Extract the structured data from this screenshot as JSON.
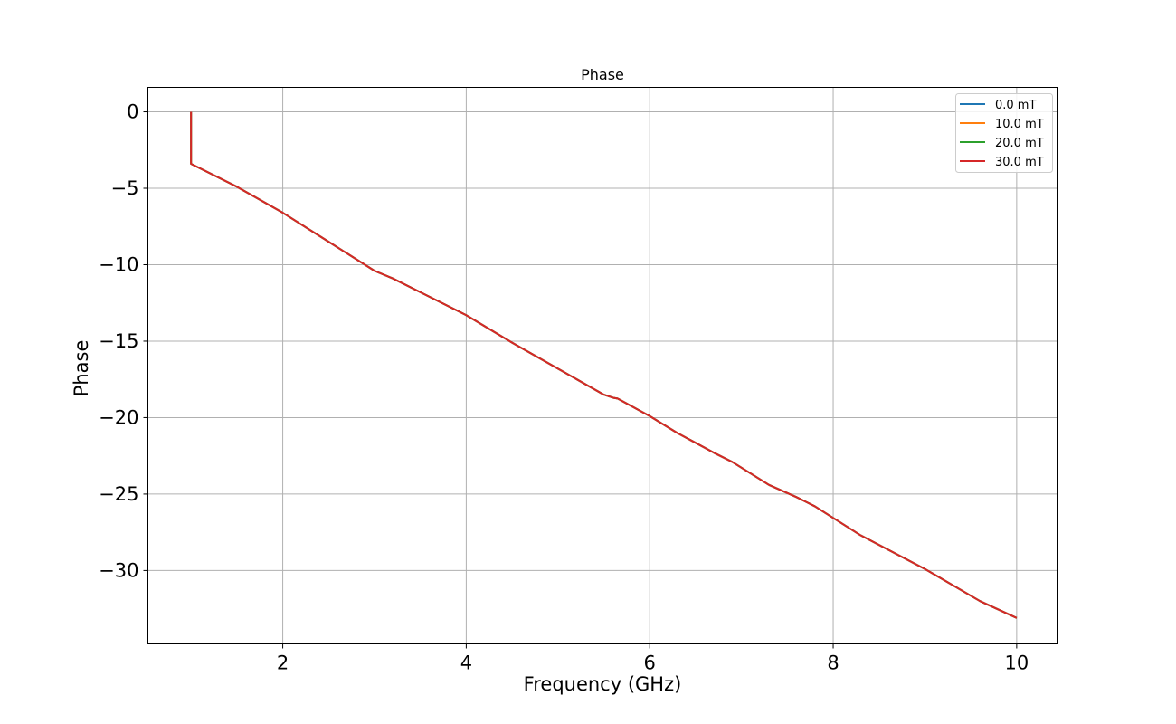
{
  "chart_data": {
    "type": "line",
    "title": "Phase",
    "xlabel": "Frequency (GHz)",
    "ylabel": "Phase",
    "xlim": [
      0.53,
      10.45
    ],
    "ylim": [
      -34.8,
      1.6
    ],
    "xticks": [
      2,
      4,
      6,
      8,
      10
    ],
    "xtick_labels": [
      "2",
      "4",
      "6",
      "8",
      "10"
    ],
    "yticks": [
      0,
      -5,
      -10,
      -15,
      -20,
      -25,
      -30
    ],
    "ytick_labels": [
      "0",
      "−5",
      "−10",
      "−15",
      "−20",
      "−25",
      "−30"
    ],
    "grid": true,
    "legend_position": "top-right",
    "series": [
      {
        "name": "0.0 mT",
        "color": "#1f77b4",
        "x": [
          1.0,
          1.0,
          1.0,
          1.5,
          2.0,
          2.5,
          3.0,
          3.2,
          3.5,
          4.0,
          4.5,
          5.0,
          5.5,
          5.6,
          5.65,
          6.0,
          6.3,
          6.7,
          6.9,
          7.3,
          7.6,
          7.8,
          8.3,
          9.0,
          9.6,
          10.0
        ],
        "y": [
          0.0,
          -3.0,
          -3.4,
          -4.9,
          -6.6,
          -8.5,
          -10.4,
          -10.9,
          -11.8,
          -13.3,
          -15.1,
          -16.8,
          -18.5,
          -18.7,
          -18.75,
          -19.9,
          -21.0,
          -22.3,
          -22.9,
          -24.4,
          -25.2,
          -25.8,
          -27.7,
          -29.9,
          -32.0,
          -33.1
        ]
      },
      {
        "name": "10.0 mT",
        "color": "#ff7f0e",
        "x": [
          1.0,
          1.0,
          1.0,
          1.5,
          2.0,
          2.5,
          3.0,
          3.2,
          3.5,
          4.0,
          4.5,
          5.0,
          5.5,
          5.6,
          5.65,
          6.0,
          6.3,
          6.7,
          6.9,
          7.3,
          7.6,
          7.8,
          8.3,
          9.0,
          9.6,
          10.0
        ],
        "y": [
          0.0,
          -3.0,
          -3.4,
          -4.9,
          -6.6,
          -8.5,
          -10.4,
          -10.9,
          -11.8,
          -13.3,
          -15.1,
          -16.8,
          -18.5,
          -18.7,
          -18.75,
          -19.9,
          -21.0,
          -22.3,
          -22.9,
          -24.4,
          -25.2,
          -25.8,
          -27.7,
          -29.9,
          -32.0,
          -33.1
        ]
      },
      {
        "name": "20.0 mT",
        "color": "#2ca02c",
        "x": [
          1.0,
          1.0,
          1.0,
          1.5,
          2.0,
          2.5,
          3.0,
          3.2,
          3.5,
          4.0,
          4.5,
          5.0,
          5.5,
          5.6,
          5.65,
          6.0,
          6.3,
          6.7,
          6.9,
          7.3,
          7.6,
          7.8,
          8.3,
          9.0,
          9.6,
          10.0
        ],
        "y": [
          0.0,
          -3.0,
          -3.4,
          -4.9,
          -6.6,
          -8.5,
          -10.4,
          -10.9,
          -11.8,
          -13.3,
          -15.1,
          -16.8,
          -18.5,
          -18.7,
          -18.75,
          -19.9,
          -21.0,
          -22.3,
          -22.9,
          -24.4,
          -25.2,
          -25.8,
          -27.7,
          -29.9,
          -32.0,
          -33.1
        ]
      },
      {
        "name": "30.0 mT",
        "color": "#d62728",
        "x": [
          1.0,
          1.0,
          1.0,
          1.5,
          2.0,
          2.5,
          3.0,
          3.2,
          3.5,
          4.0,
          4.5,
          5.0,
          5.5,
          5.6,
          5.65,
          6.0,
          6.3,
          6.7,
          6.9,
          7.3,
          7.6,
          7.8,
          8.3,
          9.0,
          9.6,
          10.0
        ],
        "y": [
          0.0,
          -3.0,
          -3.4,
          -4.9,
          -6.6,
          -8.5,
          -10.4,
          -10.9,
          -11.8,
          -13.3,
          -15.1,
          -16.8,
          -18.5,
          -18.7,
          -18.75,
          -19.9,
          -21.0,
          -22.3,
          -22.9,
          -24.4,
          -25.2,
          -25.8,
          -27.7,
          -29.9,
          -32.0,
          -33.1
        ]
      }
    ]
  }
}
